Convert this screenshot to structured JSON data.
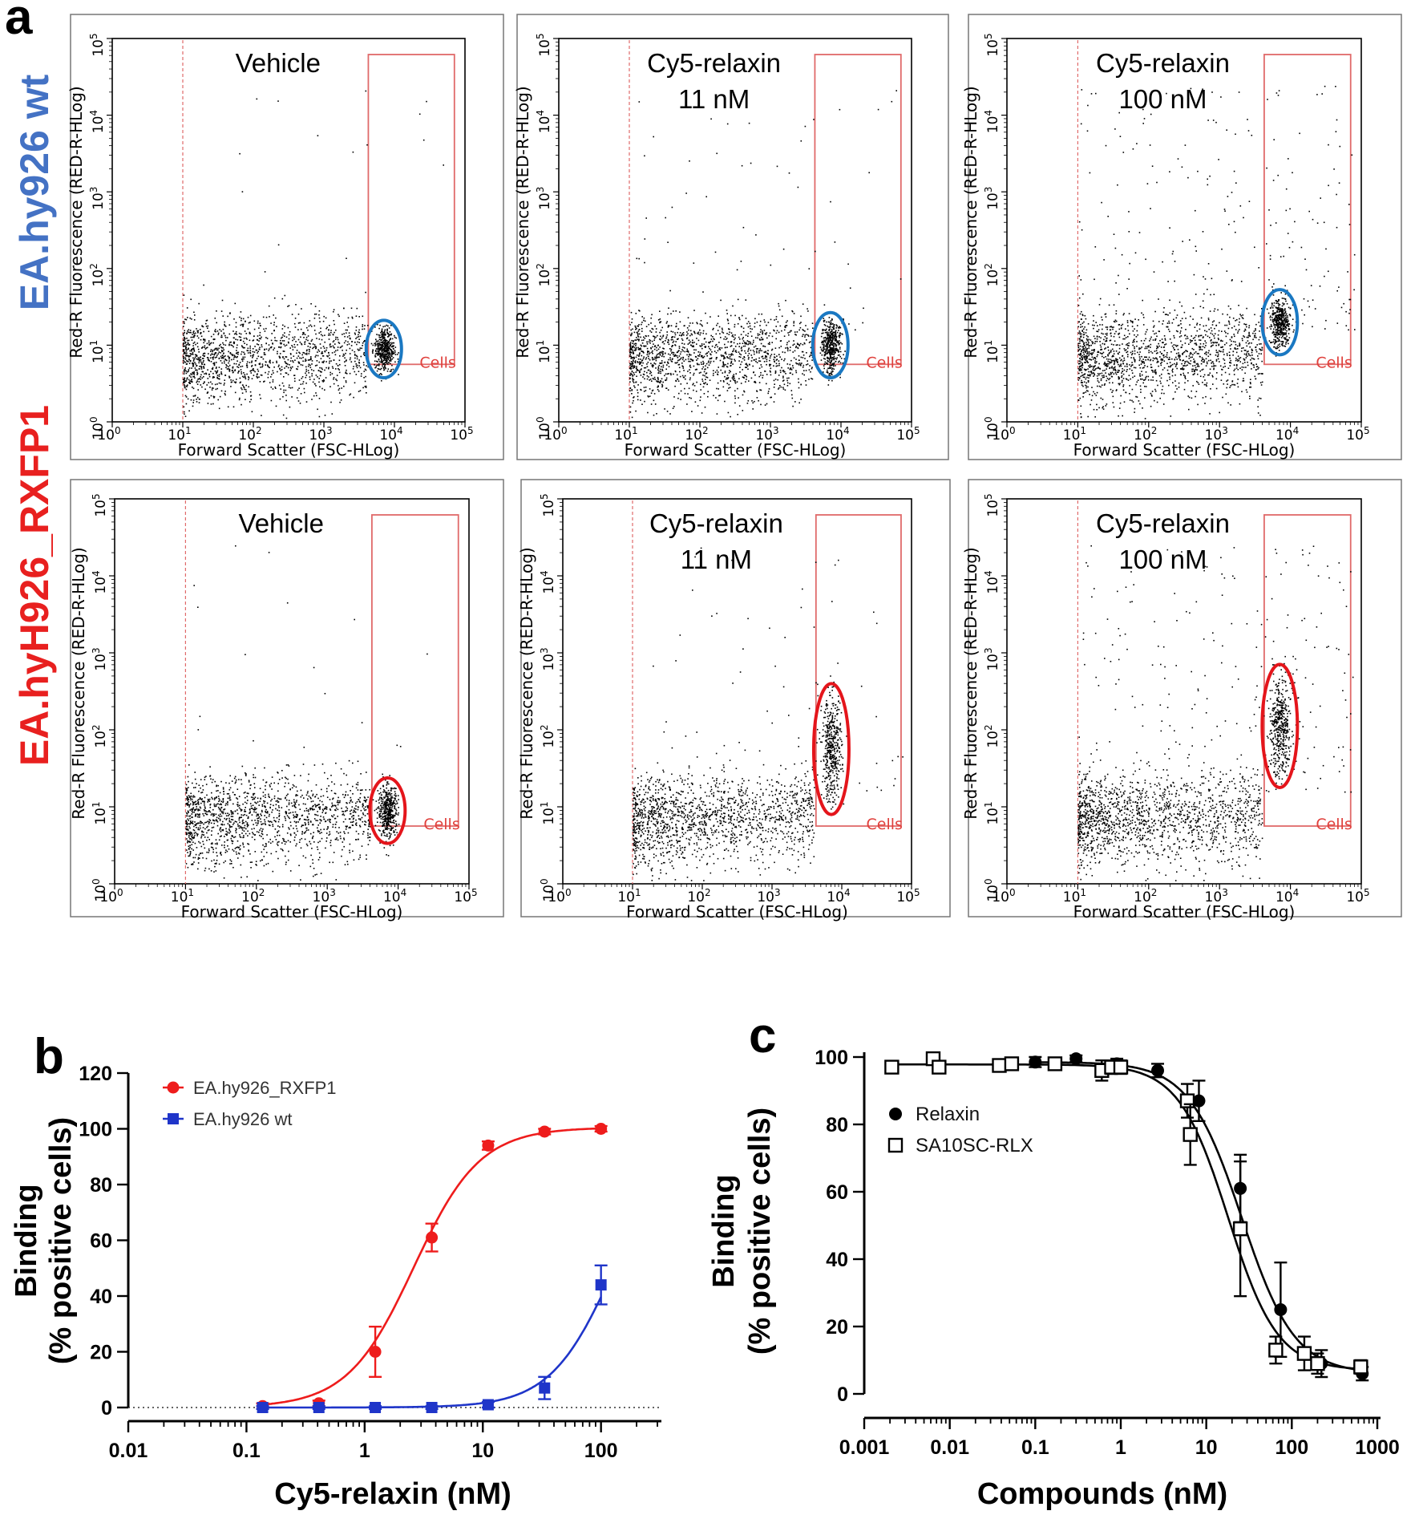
{
  "colors": {
    "wt_blue": "#4472c4",
    "rxfp1_red": "#e8201f",
    "series_red": "#ee1c1c",
    "series_blue": "#1f35c9",
    "gate_red": "#e06a6a",
    "ellipse_blue": "#1a78c2",
    "ellipse_red": "#e4151b"
  },
  "panel_a": {
    "letter": "a",
    "row_labels": [
      "EA.hy926 wt",
      "EA.hyH926_RXFP1"
    ],
    "xlabel": "Forward Scatter (FSC-HLog)",
    "ylabel": "Red-R Fluorescence (RED-R-HLog)",
    "gate_label": "Cells",
    "tick_base": "10",
    "tick_exponents": [
      "0",
      "1",
      "2",
      "3",
      "4",
      "5"
    ],
    "conditions": [
      [
        "Vehicle"
      ],
      [
        "Cy5-relaxin",
        "11 nM"
      ],
      [
        "Cy5-relaxin",
        "100 nM"
      ],
      [
        "Vehicle"
      ],
      [
        "Cy5-relaxin",
        "11 nM"
      ],
      [
        "Cy5-relaxin",
        "100 nM"
      ]
    ],
    "populations": [
      {
        "log_fsc": 3.85,
        "log_red": 0.95,
        "ellipse": "blue",
        "ell_log_height": 0.75
      },
      {
        "log_fsc": 3.85,
        "log_red": 1.0,
        "ellipse": "blue",
        "ell_log_height": 0.85
      },
      {
        "log_fsc": 3.85,
        "log_red": 1.3,
        "ellipse": "blue",
        "ell_log_height": 0.85
      },
      {
        "log_fsc": 3.85,
        "log_red": 0.95,
        "ellipse": "red",
        "ell_log_height": 0.85
      },
      {
        "log_fsc": 3.85,
        "log_red": 1.75,
        "ellipse": "red",
        "ell_log_height": 1.7
      },
      {
        "log_fsc": 3.85,
        "log_red": 2.05,
        "ellipse": "red",
        "ell_log_height": 1.6
      }
    ]
  },
  "chart_data": [
    {
      "panel": "b",
      "type": "line",
      "xscale": "log",
      "xlabel": "Cy5-relaxin (nM)",
      "ylabel_lines": [
        "Binding",
        "(% positive cells)"
      ],
      "xlim": [
        0.01,
        300
      ],
      "ylim": [
        0,
        120
      ],
      "xticks": [
        0.01,
        0.1,
        1,
        10,
        100
      ],
      "xtick_labels": [
        "0.01",
        "0.1",
        "1",
        "10",
        "100"
      ],
      "yticks": [
        0,
        20,
        40,
        60,
        80,
        100,
        120
      ],
      "ytick_labels": [
        "0",
        "20",
        "40",
        "60",
        "80",
        "100",
        "120"
      ],
      "baseline": 0,
      "series": [
        {
          "name": "EA.hy926_RXFP1",
          "marker": "circle",
          "color": "#ee1c1c",
          "x": [
            0.137,
            0.41,
            1.23,
            3.7,
            11.1,
            33.3,
            100
          ],
          "y": [
            0.5,
            1.5,
            20,
            61,
            94,
            99,
            100
          ],
          "err": [
            1,
            1,
            9,
            5,
            1.5,
            1,
            1
          ],
          "fit": {
            "bottom": 0,
            "top": 100.5,
            "ec50": 2.6,
            "hill": 1.55
          }
        },
        {
          "name": "EA.hy926 wt",
          "marker": "square",
          "color": "#1f35c9",
          "x": [
            0.137,
            0.41,
            1.23,
            3.7,
            11.1,
            33.3,
            100
          ],
          "y": [
            0,
            0,
            0,
            0,
            1,
            7,
            44
          ],
          "err": [
            0.5,
            0.5,
            0.5,
            0.5,
            1,
            4,
            7
          ],
          "fit": {
            "bottom": 0,
            "top": 100,
            "ec50": 130,
            "hill": 1.6
          }
        }
      ]
    },
    {
      "panel": "c",
      "type": "line",
      "xscale": "log",
      "xlabel": "Compounds (nM)",
      "ylabel_lines": [
        "Binding",
        "(% positive cells)"
      ],
      "xlim": [
        0.001,
        1000
      ],
      "ylim": [
        0,
        100
      ],
      "xticks": [
        0.001,
        0.01,
        0.1,
        1,
        10,
        100,
        1000
      ],
      "xtick_labels": [
        "0.001",
        "0.01",
        "0.1",
        "1",
        "10",
        "100",
        "1000"
      ],
      "yticks": [
        0,
        20,
        40,
        60,
        80,
        100
      ],
      "ytick_labels": [
        "0",
        "20",
        "40",
        "60",
        "80",
        "100"
      ],
      "series": [
        {
          "name": "Relaxin",
          "marker": "filled-circle",
          "color": "#000000",
          "x": [
            0.1,
            0.3,
            0.9,
            2.7,
            8.2,
            25,
            74,
            222,
            667
          ],
          "y": [
            98.5,
            99.5,
            98,
            96,
            87,
            61,
            25,
            9,
            6
          ],
          "err": [
            1.5,
            1,
            1.5,
            2,
            6,
            10,
            14,
            4,
            2
          ],
          "fit": {
            "bottom": 6,
            "top": 98.5,
            "ec50": 26,
            "hill": 1.4
          }
        },
        {
          "name": "SA10SC-RLX",
          "marker": "open-square",
          "color": "#000000",
          "x": [
            0.0021,
            0.0064,
            0.0075,
            0.038,
            0.053,
            0.17,
            0.6,
            0.78,
            1.0,
            6.0,
            6.5,
            25,
            65,
            140,
            200,
            640
          ],
          "y": [
            97,
            99.5,
            97,
            97.5,
            98,
            98,
            96,
            97,
            97,
            87,
            77,
            49,
            13,
            12,
            9,
            8
          ],
          "err": [
            1.5,
            1,
            1.5,
            1,
            1,
            1,
            3,
            2,
            2,
            5,
            9,
            20,
            4,
            5,
            3,
            2
          ],
          "fit": {
            "bottom": 7,
            "top": 97.8,
            "ec50": 18,
            "hill": 1.5
          }
        }
      ]
    }
  ]
}
